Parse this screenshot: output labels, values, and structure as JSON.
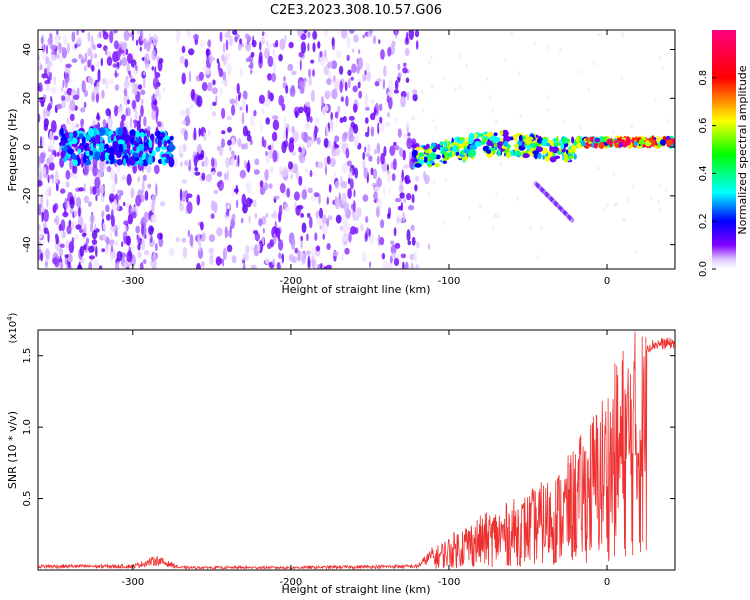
{
  "title": "C2E3.2023.308.10.57.G06",
  "chart_data": [
    {
      "type": "heatmap",
      "title": "C2E3.2023.308.10.57.G06",
      "xlabel": "Height of straight line (km)",
      "ylabel": "Frequency (Hz)",
      "xlim": [
        -360,
        43
      ],
      "ylim": [
        -50,
        48
      ],
      "xticks": [
        -300,
        -200,
        -100,
        0
      ],
      "xtick_labels": [
        "-300",
        "-200",
        "-100",
        "0"
      ],
      "yticks": [
        -40,
        -20,
        0,
        20,
        40
      ],
      "ytick_labels": [
        "-40",
        "-20",
        "0",
        "20",
        "40"
      ],
      "colorbar": {
        "label": "Normalized spectral amplitude",
        "range": [
          0,
          1
        ],
        "ticks": [
          0.0,
          0.2,
          0.4,
          0.6,
          0.8
        ],
        "tick_labels": [
          "0.0",
          "0.2",
          "0.4",
          "0.6",
          "0.8"
        ],
        "colors": [
          "#ffffff",
          "#8000ff",
          "#0000ff",
          "#00ffff",
          "#00ff00",
          "#ffff00",
          "#ff0000",
          "#ff0080"
        ]
      },
      "features": [
        {
          "name": "noise-region-1",
          "x_range": [
            -360,
            -282
          ],
          "freq_range": [
            -50,
            48
          ]
        },
        {
          "name": "noise-region-2",
          "x_range": [
            -270,
            -120
          ],
          "freq_range": [
            -50,
            48
          ]
        },
        {
          "name": "signal-band-1",
          "x_range": [
            -345,
            -275
          ],
          "center_freq": 0
        },
        {
          "name": "signal-band-2",
          "x_range": [
            -122,
            43
          ],
          "center_freq": [
            0,
            2
          ]
        },
        {
          "name": "mirror-trace",
          "x_range": [
            -45,
            -22
          ],
          "freq_range": [
            -15,
            -30
          ]
        }
      ]
    },
    {
      "type": "line",
      "xlabel": "Height of straight line (km)",
      "ylabel": "SNR (10 * v/v)",
      "y_scale_label": "(x10^4)",
      "xlim": [
        -360,
        43
      ],
      "ylim": [
        0,
        16800
      ],
      "xticks": [
        -300,
        -200,
        -100,
        0
      ],
      "xtick_labels": [
        "-300",
        "-200",
        "-100",
        "0"
      ],
      "yticks": [
        5000,
        10000,
        15000
      ],
      "ytick_labels": [
        "0.5",
        "1.0",
        "1.5"
      ],
      "series": [
        {
          "name": "SNR",
          "color": "#ee3030",
          "x": [
            -360,
            -300,
            -285,
            -270,
            -200,
            -120,
            -105,
            -90,
            -70,
            -50,
            -30,
            -20,
            -10,
            0,
            10,
            20,
            30,
            43
          ],
          "y": [
            300,
            300,
            800,
            200,
            200,
            300,
            1800,
            3000,
            4000,
            5000,
            6500,
            8000,
            10000,
            12000,
            14500,
            15800,
            16200,
            16300
          ]
        }
      ]
    }
  ]
}
